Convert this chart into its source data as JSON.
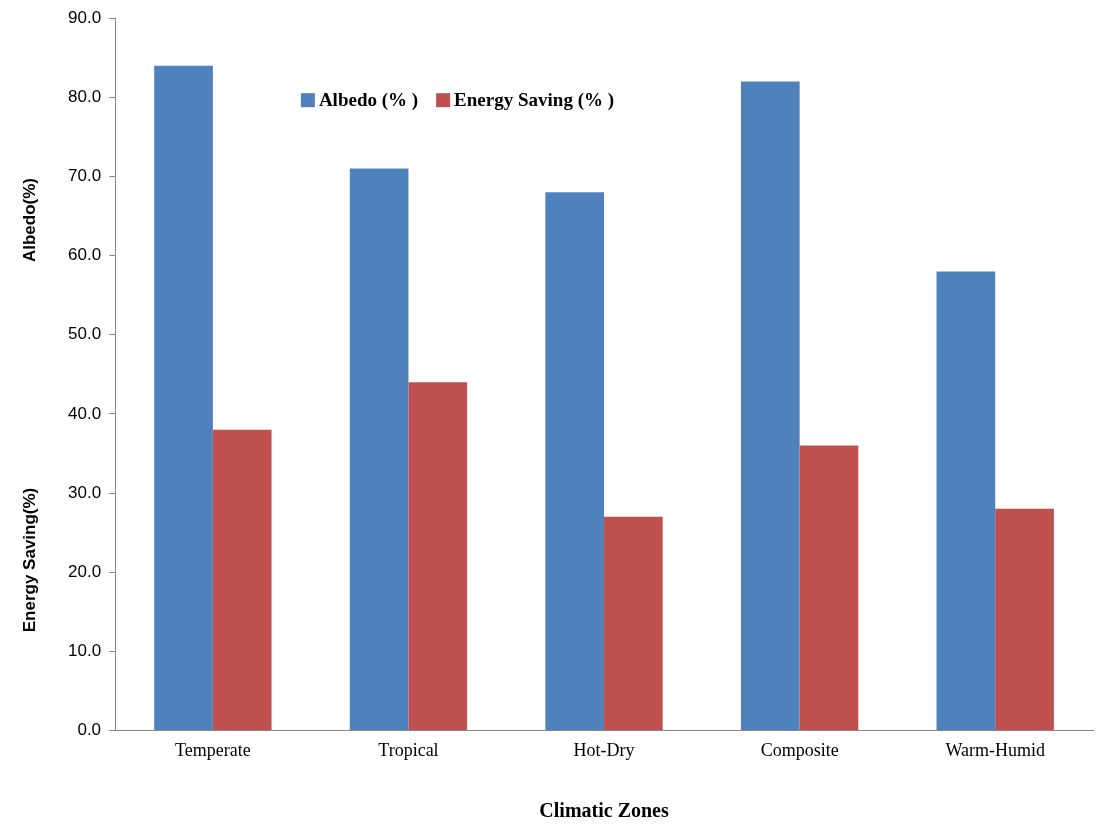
{
  "chart_data": {
    "type": "bar",
    "xlabel": "Climatic Zones",
    "ylabel": "Albedo(%)",
    "annotations": [
      "Energy Saving(%)"
    ],
    "categories": [
      "Temperate",
      "Tropical",
      "Hot-Dry",
      "Composite",
      "Warm-Humid"
    ],
    "series": [
      {
        "name": "Albedo (% )",
        "color": "#4f81bd",
        "values": [
          84,
          71,
          68,
          82,
          58
        ]
      },
      {
        "name": "Energy Saving (% )",
        "color": "#c0504d",
        "values": [
          38,
          44,
          27,
          36,
          28
        ]
      }
    ],
    "ylim": [
      0,
      90
    ],
    "yticks": [
      {
        "value": 0,
        "label": "0.0"
      },
      {
        "value": 10,
        "label": "10.0"
      },
      {
        "value": 20,
        "label": "20.0"
      },
      {
        "value": 30,
        "label": "30.0"
      },
      {
        "value": 40,
        "label": "40.0"
      },
      {
        "value": 50,
        "label": "50.0"
      },
      {
        "value": 60,
        "label": "60.0"
      },
      {
        "value": 70,
        "label": "70.0"
      },
      {
        "value": 80,
        "label": "80.0"
      },
      {
        "value": 90,
        "label": "90.0"
      }
    ],
    "grid": false,
    "legend": "top"
  }
}
